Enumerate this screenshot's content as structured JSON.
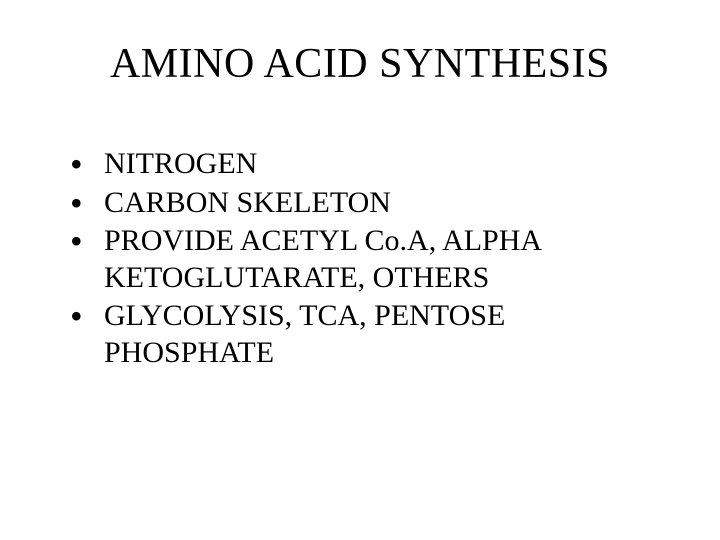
{
  "background_color": "#ffffff",
  "text_color": "#000000",
  "font_family": "Times New Roman",
  "title": {
    "text": "AMINO ACID SYNTHESIS",
    "fontsize": 42,
    "font_weight": "normal"
  },
  "bullets": {
    "fontsize": 30,
    "items": [
      "NITROGEN",
      "CARBON SKELETON",
      "PROVIDE ACETYL Co.A, ALPHA KETOGLUTARATE, OTHERS",
      "GLYCOLYSIS, TCA, PENTOSE PHOSPHATE"
    ]
  }
}
